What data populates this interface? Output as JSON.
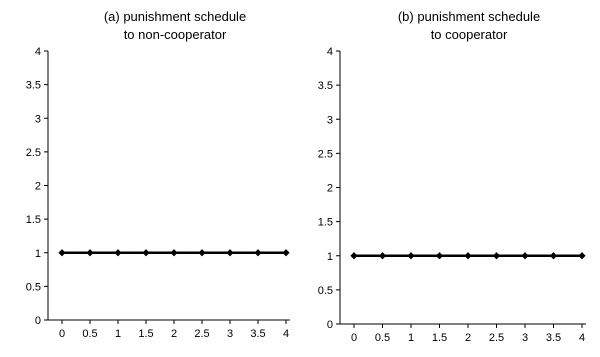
{
  "chart_data": [
    {
      "type": "line",
      "title_lines": [
        "(a) punishment schedule",
        "to non-cooperator"
      ],
      "xlabel": "",
      "ylabel": "",
      "x": [
        0,
        0.5,
        1,
        1.5,
        2,
        2.5,
        3,
        3.5,
        4
      ],
      "x_tick_labels": [
        "0",
        "0.5",
        "1",
        "1.5",
        "2",
        "2.5",
        "3",
        "3.5",
        "4"
      ],
      "y_tick_labels": [
        "0",
        "0.5",
        "1",
        "1.5",
        "2",
        "2.5",
        "3",
        "3.5",
        "4"
      ],
      "xlim": [
        0,
        4
      ],
      "ylim": [
        0,
        4
      ],
      "grid": false,
      "legend": "none",
      "series": [
        {
          "values": [
            1,
            1,
            1,
            1,
            1,
            1,
            1,
            1,
            1
          ],
          "color": "#000000",
          "marker": "diamond"
        }
      ]
    },
    {
      "type": "line",
      "title_lines": [
        "(b) punishment schedule",
        "to cooperator"
      ],
      "xlabel": "",
      "ylabel": "",
      "x": [
        0,
        0.5,
        1,
        1.5,
        2,
        2.5,
        3,
        3.5,
        4
      ],
      "x_tick_labels": [
        "0",
        "0.5",
        "1",
        "1.5",
        "2",
        "2.5",
        "3",
        "3.5",
        "4"
      ],
      "y_tick_labels": [
        "0",
        "0.5",
        "1",
        "1.5",
        "2",
        "2.5",
        "3",
        "3.5",
        "4"
      ],
      "xlim": [
        0,
        4
      ],
      "ylim": [
        0,
        4
      ],
      "grid": false,
      "legend": "none",
      "series": [
        {
          "values": [
            1,
            1,
            1,
            1,
            1,
            1,
            1,
            1,
            1
          ],
          "color": "#000000",
          "marker": "diamond"
        }
      ]
    }
  ]
}
